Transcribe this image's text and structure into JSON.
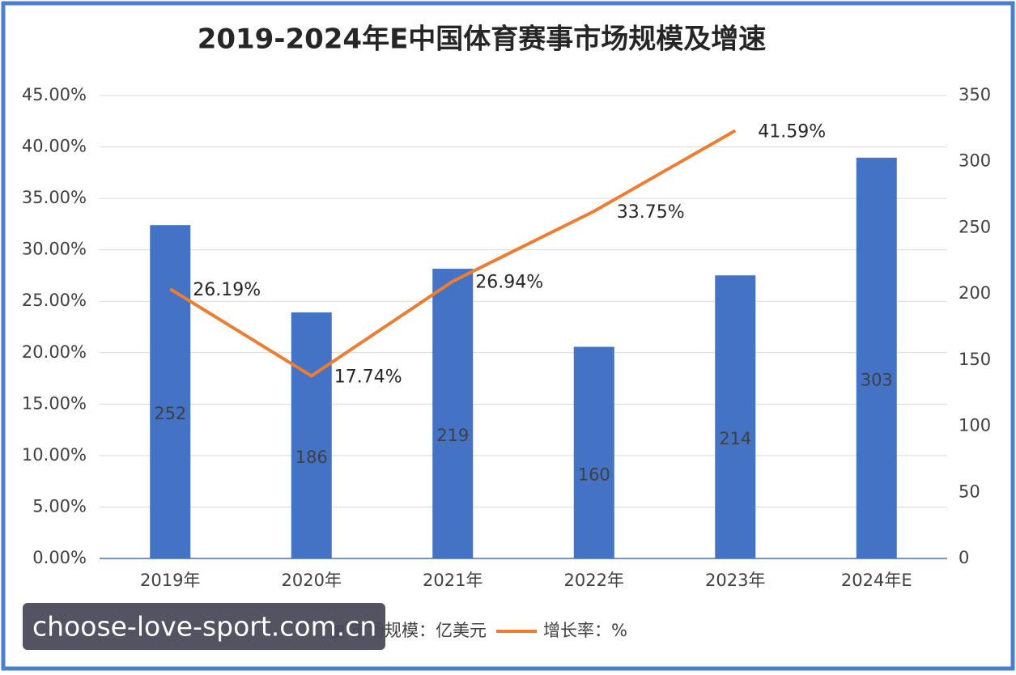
{
  "chart_data": {
    "type": "bar",
    "title": "2019-2024年E中国体育赛事市场规模及增速",
    "categories": [
      "2019年",
      "2020年",
      "2021年",
      "2022年",
      "2023年",
      "2024年E"
    ],
    "series": [
      {
        "name": "市场规模：亿美元",
        "type": "bar",
        "axis": "y2",
        "color": "#4472c4",
        "values": [
          252,
          186,
          219,
          160,
          214,
          303
        ]
      },
      {
        "name": "增长率：%",
        "type": "line",
        "axis": "y",
        "color": "#ed7d31",
        "values": [
          26.19,
          17.74,
          26.94,
          33.75,
          41.59,
          null
        ],
        "value_labels": [
          "26.19%",
          "17.74%",
          "26.94%",
          "33.75%",
          "41.59%",
          null
        ]
      }
    ],
    "ylim": [
      0,
      45
    ],
    "yticks": [
      {
        "value": 0,
        "label": "0.00%"
      },
      {
        "value": 5,
        "label": "5.00%"
      },
      {
        "value": 10,
        "label": "10.00%"
      },
      {
        "value": 15,
        "label": "15.00%"
      },
      {
        "value": 20,
        "label": "20.00%"
      },
      {
        "value": 25,
        "label": "25.00%"
      },
      {
        "value": 30,
        "label": "30.00%"
      },
      {
        "value": 35,
        "label": "35.00%"
      },
      {
        "value": 40,
        "label": "40.00%"
      },
      {
        "value": 45,
        "label": "45.00%"
      }
    ],
    "y2lim": [
      0,
      350
    ],
    "y2ticks": [
      0,
      50,
      100,
      150,
      200,
      250,
      300,
      350
    ],
    "grid": true,
    "legend": "bottom",
    "watermark": "choose-love-sport.com.cn"
  }
}
